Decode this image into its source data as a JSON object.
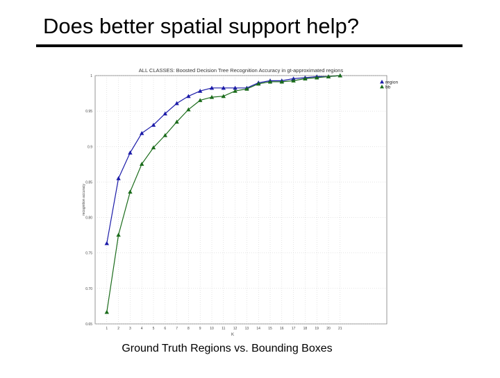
{
  "slide": {
    "title": "Does better spatial support help?",
    "caption": "Ground Truth Regions vs. Bounding Boxes"
  },
  "chart_data": {
    "type": "line",
    "title": "ALL CLASSES: Boosted Decision Tree Recognition Accuracy in gt-approximated regions",
    "xlabel": "K",
    "ylabel": "recognition accuracy",
    "x": [
      1,
      2,
      3,
      4,
      5,
      6,
      7,
      8,
      9,
      10,
      11,
      12,
      13,
      14,
      15,
      16,
      17,
      18,
      19,
      20,
      21
    ],
    "xlim": [
      0,
      25
    ],
    "ylim": [
      0.65,
      1
    ],
    "y_ticks": [
      0.65,
      0.7,
      0.75,
      0.8,
      0.85,
      0.9,
      0.95,
      1
    ],
    "y_tick_labels": [
      "0.65",
      "0.70",
      "0.75",
      "0.80",
      "0.85",
      "0.9",
      "0.95",
      "1"
    ],
    "grid": true,
    "legend_position": "top-right",
    "series": [
      {
        "name": "region",
        "color": "#1a1aa8",
        "values": [
          0.7636,
          0.8551,
          0.8913,
          0.9188,
          0.9304,
          0.9464,
          0.9609,
          0.971,
          0.9783,
          0.9826,
          0.9826,
          0.9826,
          0.9826,
          0.9899,
          0.9928,
          0.9928,
          0.9957,
          0.9971,
          0.9986,
          0.9986,
          1.0
        ]
      },
      {
        "name": "bb",
        "color": "#1a6b1a",
        "values": [
          0.6667,
          0.7754,
          0.8362,
          0.8754,
          0.8986,
          0.9159,
          0.9348,
          0.9522,
          0.9652,
          0.9696,
          0.971,
          0.9783,
          0.9812,
          0.9884,
          0.9913,
          0.9913,
          0.9928,
          0.9957,
          0.9971,
          0.9986,
          1.0
        ]
      }
    ]
  }
}
